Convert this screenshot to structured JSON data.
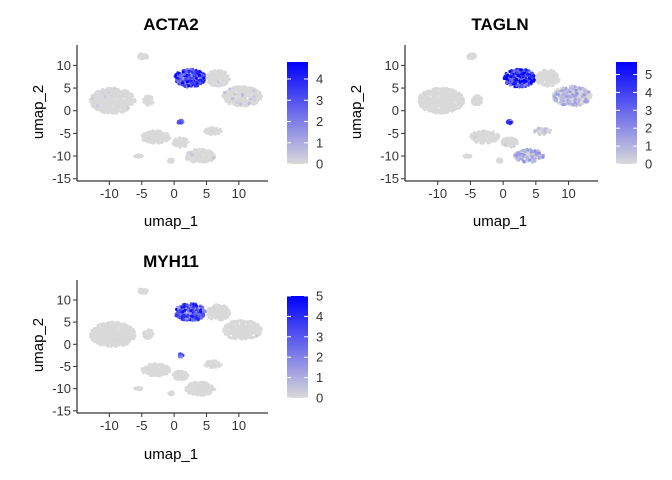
{
  "chart_data": [
    {
      "type": "scatter",
      "title": "ACTA2",
      "xlabel": "umap_1",
      "ylabel": "umap_2",
      "xlim": [
        -15,
        14.5
      ],
      "ylim": [
        -15.5,
        14.5
      ],
      "x_ticks": [
        -10,
        -5,
        0,
        5,
        10
      ],
      "x_tick_labels": [
        "-10",
        "-5",
        "0",
        "5",
        "10"
      ],
      "y_ticks": [
        -15,
        -10,
        -5,
        0,
        5,
        10
      ],
      "y_tick_labels": [
        "-15",
        "-10",
        "-5",
        "0",
        "5",
        "10"
      ],
      "grid": false,
      "legend": {
        "position": "right",
        "min": 0,
        "max": 4.8,
        "ticks": [
          0,
          1,
          2,
          3,
          4
        ],
        "tick_labels": [
          "0",
          "1",
          "2",
          "3",
          "4"
        ],
        "low_color": "#d9d9d9",
        "high_color": "#0000ff"
      },
      "clusters": [
        {
          "x": -9.5,
          "y": 2.2,
          "rx": 3.5,
          "ry": 2.8,
          "expr": 0.3
        },
        {
          "x": -4.8,
          "y": 12.0,
          "rx": 0.8,
          "ry": 0.6,
          "expr": 0.1
        },
        {
          "x": -4.0,
          "y": 2.3,
          "rx": 0.8,
          "ry": 1.1,
          "expr": 0.2
        },
        {
          "x": 2.5,
          "y": 7.2,
          "rx": 2.4,
          "ry": 2.0,
          "expr": 3.8
        },
        {
          "x": 6.8,
          "y": 7.2,
          "rx": 1.8,
          "ry": 1.8,
          "expr": 0.3
        },
        {
          "x": 10.5,
          "y": 3.2,
          "rx": 3.0,
          "ry": 2.2,
          "expr": 0.5
        },
        {
          "x": -2.8,
          "y": -5.8,
          "rx": 2.2,
          "ry": 1.4,
          "expr": 0.1
        },
        {
          "x": 1.0,
          "y": -7.0,
          "rx": 1.2,
          "ry": 1.1,
          "expr": 0.2
        },
        {
          "x": 1.0,
          "y": -2.5,
          "rx": 0.4,
          "ry": 0.4,
          "expr": 3.5
        },
        {
          "x": 6.0,
          "y": -4.5,
          "rx": 1.3,
          "ry": 0.8,
          "expr": 0.2
        },
        {
          "x": 4.0,
          "y": -10.0,
          "rx": 2.3,
          "ry": 1.5,
          "expr": 0.5
        },
        {
          "x": -5.5,
          "y": -10.0,
          "rx": 0.6,
          "ry": 0.3,
          "expr": 0.05
        },
        {
          "x": -0.5,
          "y": -11.0,
          "rx": 0.4,
          "ry": 0.4,
          "expr": 0.05
        }
      ]
    },
    {
      "type": "scatter",
      "title": "TAGLN",
      "xlabel": "umap_1",
      "ylabel": "umap_2",
      "xlim": [
        -15,
        14.5
      ],
      "ylim": [
        -15.5,
        14.5
      ],
      "x_ticks": [
        -10,
        -5,
        0,
        5,
        10
      ],
      "x_tick_labels": [
        "-10",
        "-5",
        "0",
        "5",
        "10"
      ],
      "y_ticks": [
        -15,
        -10,
        -5,
        0,
        5,
        10
      ],
      "y_tick_labels": [
        "-15",
        "-10",
        "-5",
        "0",
        "5",
        "10"
      ],
      "grid": false,
      "legend": {
        "position": "right",
        "min": 0,
        "max": 5.7,
        "ticks": [
          0,
          1,
          2,
          3,
          4,
          5
        ],
        "tick_labels": [
          "0",
          "1",
          "2",
          "3",
          "4",
          "5"
        ],
        "low_color": "#d9d9d9",
        "high_color": "#0000ff"
      },
      "clusters": [
        {
          "x": -9.5,
          "y": 2.2,
          "rx": 3.5,
          "ry": 2.8,
          "expr": 0.1
        },
        {
          "x": -4.8,
          "y": 12.0,
          "rx": 0.8,
          "ry": 0.6,
          "expr": 0.1
        },
        {
          "x": -4.0,
          "y": 2.3,
          "rx": 0.8,
          "ry": 1.1,
          "expr": 0.1
        },
        {
          "x": 2.5,
          "y": 7.2,
          "rx": 2.4,
          "ry": 2.0,
          "expr": 5.0
        },
        {
          "x": 6.8,
          "y": 7.2,
          "rx": 1.8,
          "ry": 1.8,
          "expr": 0.2
        },
        {
          "x": 10.5,
          "y": 3.2,
          "rx": 3.0,
          "ry": 2.2,
          "expr": 1.2
        },
        {
          "x": -2.8,
          "y": -5.8,
          "rx": 2.2,
          "ry": 1.4,
          "expr": 0.3
        },
        {
          "x": 1.0,
          "y": -7.0,
          "rx": 1.2,
          "ry": 1.1,
          "expr": 0.3
        },
        {
          "x": 1.0,
          "y": -2.5,
          "rx": 0.4,
          "ry": 0.4,
          "expr": 4.0
        },
        {
          "x": 6.0,
          "y": -4.5,
          "rx": 1.3,
          "ry": 0.8,
          "expr": 0.6
        },
        {
          "x": 4.0,
          "y": -10.0,
          "rx": 2.3,
          "ry": 1.5,
          "expr": 1.5
        },
        {
          "x": -5.5,
          "y": -10.0,
          "rx": 0.6,
          "ry": 0.3,
          "expr": 0.05
        },
        {
          "x": -0.5,
          "y": -11.0,
          "rx": 0.4,
          "ry": 0.4,
          "expr": 0.05
        }
      ]
    },
    {
      "type": "scatter",
      "title": "MYH11",
      "xlabel": "umap_1",
      "ylabel": "umap_2",
      "xlim": [
        -15,
        14.5
      ],
      "ylim": [
        -15.5,
        14.5
      ],
      "x_ticks": [
        -10,
        -5,
        0,
        5,
        10
      ],
      "x_tick_labels": [
        "-10",
        "-5",
        "0",
        "5",
        "10"
      ],
      "y_ticks": [
        -15,
        -10,
        -5,
        0,
        5,
        10
      ],
      "y_tick_labels": [
        "-15",
        "-10",
        "-5",
        "0",
        "5",
        "10"
      ],
      "grid": false,
      "legend": {
        "position": "right",
        "min": 0,
        "max": 5.0,
        "ticks": [
          0,
          1,
          2,
          3,
          4,
          5
        ],
        "tick_labels": [
          "0",
          "1",
          "2",
          "3",
          "4",
          "5"
        ],
        "low_color": "#d9d9d9",
        "high_color": "#0000ff"
      },
      "clusters": [
        {
          "x": -9.5,
          "y": 2.2,
          "rx": 3.5,
          "ry": 2.8,
          "expr": 0.1
        },
        {
          "x": -4.8,
          "y": 12.0,
          "rx": 0.8,
          "ry": 0.6,
          "expr": 0.5
        },
        {
          "x": -4.0,
          "y": 2.3,
          "rx": 0.8,
          "ry": 1.1,
          "expr": 0.1
        },
        {
          "x": 2.5,
          "y": 7.2,
          "rx": 2.4,
          "ry": 2.0,
          "expr": 3.5
        },
        {
          "x": 6.8,
          "y": 7.2,
          "rx": 1.8,
          "ry": 1.8,
          "expr": 0.1
        },
        {
          "x": 10.5,
          "y": 3.2,
          "rx": 3.0,
          "ry": 2.2,
          "expr": 0.3
        },
        {
          "x": -2.8,
          "y": -5.8,
          "rx": 2.2,
          "ry": 1.4,
          "expr": 0.1
        },
        {
          "x": 1.0,
          "y": -7.0,
          "rx": 1.2,
          "ry": 1.1,
          "expr": 0.1
        },
        {
          "x": 1.0,
          "y": -2.5,
          "rx": 0.4,
          "ry": 0.4,
          "expr": 2.5
        },
        {
          "x": 6.0,
          "y": -4.5,
          "rx": 1.3,
          "ry": 0.8,
          "expr": 0.1
        },
        {
          "x": 4.0,
          "y": -10.0,
          "rx": 2.3,
          "ry": 1.5,
          "expr": 0.1
        },
        {
          "x": -5.5,
          "y": -10.0,
          "rx": 0.6,
          "ry": 0.3,
          "expr": 0.05
        },
        {
          "x": -0.5,
          "y": -11.0,
          "rx": 0.4,
          "ry": 0.4,
          "expr": 0.05
        }
      ]
    }
  ]
}
